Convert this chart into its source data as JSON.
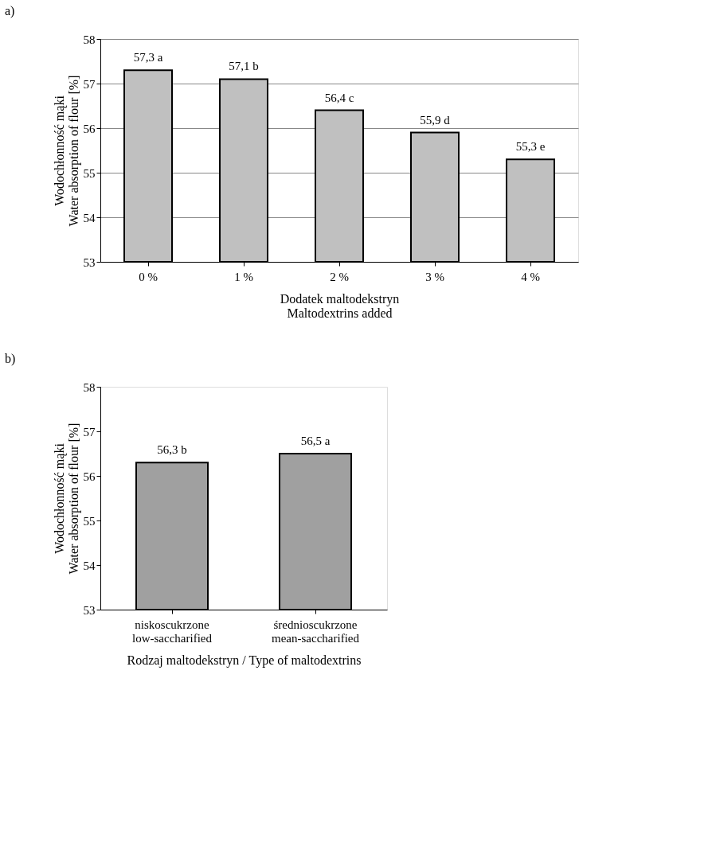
{
  "chart_data": [
    {
      "type": "bar",
      "title": "a)",
      "xlabel": "Dodatek maltodekstryn\nMaltodextrins added",
      "ylabel": "Wodochłonność mąki\nWater absorption of flour [%]",
      "categories": [
        "0 %",
        "1 %",
        "2 %",
        "3 %",
        "4 %"
      ],
      "values": [
        57.3,
        57.1,
        56.4,
        55.9,
        55.3
      ],
      "value_labels": [
        "57,3 a",
        "57,1 b",
        "56,4 c",
        "55,9 d",
        "55,3 e"
      ],
      "color": "#c0c0c0",
      "ylim": [
        53,
        58
      ],
      "yticks": [
        53,
        54,
        55,
        56,
        57,
        58
      ],
      "grid": "y"
    },
    {
      "type": "bar",
      "title": "b)",
      "xlabel": "Rodzaj maltodekstryn / Type of maltodextrins",
      "ylabel": "Wodochłonność mąki\nWater absorption of flour [%]",
      "categories": [
        "niskoscukrzone low-saccharified",
        "średnioscukrzone mean-saccharified"
      ],
      "values": [
        56.3,
        56.5
      ],
      "value_labels": [
        "56,3 b",
        "56,5 a"
      ],
      "color": "#a0a0a0",
      "ylim": [
        53,
        58
      ],
      "yticks": [
        53,
        54,
        55,
        56,
        57,
        58
      ],
      "grid": false
    }
  ]
}
